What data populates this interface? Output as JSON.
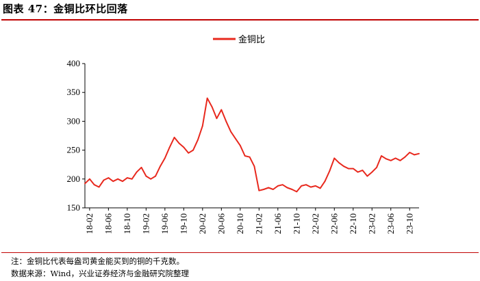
{
  "title": "图表 47：金铜比环比回落",
  "note": "注：金铜比代表每盎司黄金能买到的铜的千克数。",
  "source": "数据来源：Wind，兴业证券经济与金融研究院整理",
  "colors": {
    "accent": "#c00000",
    "series": "#e8281d"
  },
  "chart_data": {
    "type": "line",
    "legend": "top-center",
    "grid": false,
    "ylim": [
      150,
      400
    ],
    "yticks": [
      "150",
      "200",
      "250",
      "300",
      "350",
      "400"
    ],
    "xticks": [
      "18-02",
      "18-06",
      "18-10",
      "19-02",
      "19-06",
      "19-10",
      "20-02",
      "20-06",
      "20-10",
      "21-02",
      "21-06",
      "21-10",
      "22-02",
      "22-06",
      "22-10",
      "23-02",
      "23-06",
      "23-10"
    ],
    "series": [
      {
        "name": "金铜比",
        "x": [
          "18-01",
          "18-02",
          "18-03",
          "18-04",
          "18-05",
          "18-06",
          "18-07",
          "18-08",
          "18-09",
          "18-10",
          "18-11",
          "18-12",
          "19-01",
          "19-02",
          "19-03",
          "19-04",
          "19-05",
          "19-06",
          "19-07",
          "19-08",
          "19-09",
          "19-10",
          "19-11",
          "19-12",
          "20-01",
          "20-02",
          "20-03",
          "20-04",
          "20-05",
          "20-06",
          "20-07",
          "20-08",
          "20-09",
          "20-10",
          "20-11",
          "20-12",
          "21-01",
          "21-02",
          "21-03",
          "21-04",
          "21-05",
          "21-06",
          "21-07",
          "21-08",
          "21-09",
          "21-10",
          "21-11",
          "21-12",
          "22-01",
          "22-02",
          "22-03",
          "22-04",
          "22-05",
          "22-06",
          "22-07",
          "22-08",
          "22-09",
          "22-10",
          "22-11",
          "22-12",
          "23-01",
          "23-02",
          "23-03",
          "23-04",
          "23-05",
          "23-06",
          "23-07",
          "23-08",
          "23-09",
          "23-10",
          "23-11",
          "23-12"
        ],
        "values": [
          192,
          200,
          190,
          186,
          198,
          202,
          196,
          200,
          196,
          202,
          200,
          212,
          220,
          205,
          200,
          205,
          222,
          236,
          255,
          272,
          262,
          255,
          245,
          250,
          268,
          292,
          340,
          325,
          305,
          320,
          300,
          282,
          270,
          258,
          240,
          238,
          222,
          180,
          182,
          185,
          182,
          188,
          190,
          185,
          182,
          178,
          188,
          190,
          186,
          188,
          184,
          196,
          214,
          236,
          228,
          222,
          218,
          218,
          212,
          215,
          205,
          212,
          220,
          240,
          235,
          232,
          236,
          232,
          238,
          246,
          242,
          244
        ]
      }
    ]
  }
}
